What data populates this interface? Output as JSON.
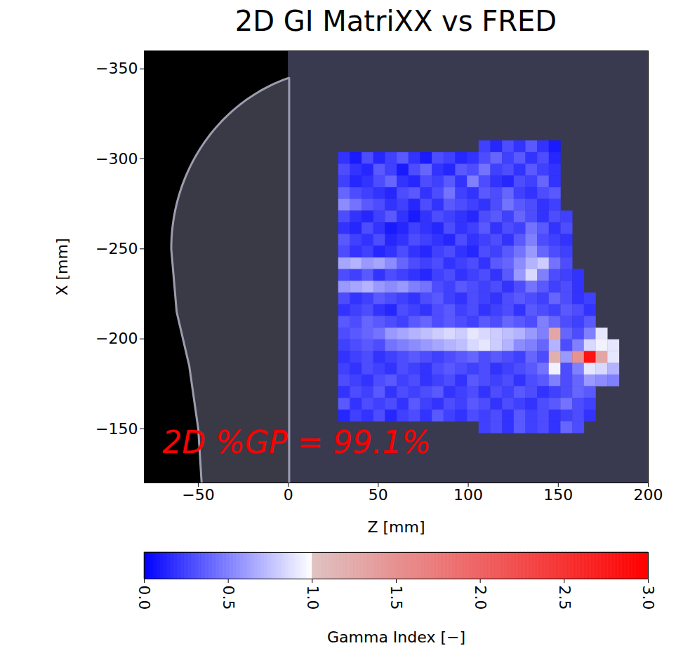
{
  "chart_data": {
    "type": "heatmap",
    "title": "2D GI MatriXX vs FRED",
    "x_label": "Z [mm]",
    "y_label": "X [mm]",
    "xlim": [
      -80,
      200
    ],
    "xticks": [
      -50,
      0,
      50,
      100,
      150,
      200
    ],
    "ylim": [
      -360,
      -120
    ],
    "yticks": [
      -350,
      -300,
      -250,
      -200,
      -150
    ],
    "ct_image": {
      "z_range": [
        -80,
        0
      ]
    },
    "z_edges": [
      28,
      34.5,
      41,
      47.5,
      54,
      60.5,
      67,
      73.5,
      80,
      86.5,
      93,
      99.5,
      106,
      112.5,
      119,
      125.5,
      132,
      138.5,
      145,
      151.5,
      158,
      164.5,
      171,
      177.5,
      184
    ],
    "x_edges": [
      -310,
      -303.5,
      -297,
      -290.5,
      -284,
      -277.5,
      -271,
      -264.5,
      -258,
      -251.5,
      -245,
      -238.5,
      -232,
      -225.5,
      -219,
      -212.5,
      -206,
      -199.5,
      -193,
      -186.5,
      -180,
      -173.5,
      -167,
      -160.5,
      -154,
      -147.5
    ],
    "cells": [
      [
        null,
        null,
        null,
        null,
        null,
        null,
        null,
        null,
        null,
        null,
        null,
        null,
        0.25,
        0.15,
        0.3,
        0.2,
        0.35,
        0.2,
        0.1,
        null,
        null,
        null,
        null,
        null
      ],
      [
        0.2,
        0.1,
        0.3,
        0.15,
        0.25,
        0.35,
        0.2,
        0.1,
        0.3,
        0.25,
        0.15,
        0.2,
        0.3,
        0.4,
        0.25,
        0.35,
        0.2,
        0.3,
        0.15,
        null,
        null,
        null,
        null,
        null
      ],
      [
        0.3,
        0.2,
        0.15,
        0.35,
        0.25,
        0.1,
        0.3,
        0.4,
        0.2,
        0.15,
        0.35,
        0.3,
        0.45,
        0.25,
        0.3,
        0.2,
        0.35,
        0.25,
        0.2,
        null,
        null,
        null,
        null,
        null
      ],
      [
        0.25,
        0.15,
        0.2,
        0.3,
        0.4,
        0.2,
        0.15,
        0.3,
        0.25,
        0.35,
        0.2,
        0.5,
        0.3,
        0.2,
        0.15,
        0.3,
        0.25,
        0.4,
        0.2,
        null,
        null,
        null,
        null,
        null
      ],
      [
        0.4,
        0.3,
        0.25,
        0.2,
        0.15,
        0.3,
        0.35,
        0.2,
        0.3,
        0.45,
        0.25,
        0.2,
        0.35,
        0.3,
        0.4,
        0.25,
        0.2,
        0.3,
        0.35,
        null,
        null,
        null,
        null,
        null
      ],
      [
        0.55,
        0.45,
        0.35,
        0.3,
        0.2,
        0.25,
        0.15,
        0.3,
        0.2,
        0.35,
        0.3,
        0.25,
        0.2,
        0.3,
        0.45,
        0.35,
        0.3,
        0.2,
        0.25,
        null,
        null,
        null,
        null,
        null
      ],
      [
        0.3,
        0.2,
        0.15,
        0.25,
        0.35,
        0.2,
        0.1,
        0.2,
        0.3,
        0.25,
        0.2,
        0.15,
        0.3,
        0.35,
        0.25,
        0.4,
        0.3,
        0.2,
        0.3,
        0.25,
        null,
        null,
        null,
        null
      ],
      [
        0.2,
        0.15,
        0.3,
        0.2,
        0.1,
        0.15,
        0.25,
        0.2,
        0.15,
        0.3,
        0.2,
        0.25,
        0.35,
        0.2,
        0.3,
        0.25,
        0.45,
        0.35,
        0.2,
        0.3,
        null,
        null,
        null,
        null
      ],
      [
        0.35,
        0.25,
        0.2,
        0.3,
        0.15,
        0.2,
        0.3,
        0.25,
        0.2,
        0.15,
        0.3,
        0.2,
        0.25,
        0.3,
        0.2,
        0.35,
        0.5,
        0.3,
        0.25,
        0.2,
        null,
        null,
        null,
        null
      ],
      [
        0.3,
        0.2,
        0.25,
        0.15,
        0.2,
        0.3,
        0.2,
        0.15,
        0.25,
        0.3,
        0.2,
        0.15,
        0.3,
        0.25,
        0.35,
        0.45,
        0.6,
        0.4,
        0.3,
        0.25,
        null,
        null,
        null,
        null
      ],
      [
        0.65,
        0.7,
        0.6,
        0.65,
        0.55,
        0.4,
        0.3,
        0.25,
        0.3,
        0.2,
        0.25,
        0.3,
        0.2,
        0.35,
        0.4,
        0.55,
        0.7,
        0.8,
        0.45,
        0.3,
        null,
        null,
        null,
        null
      ],
      [
        0.3,
        0.25,
        0.35,
        0.2,
        0.3,
        0.25,
        0.2,
        0.15,
        0.25,
        0.3,
        0.2,
        0.25,
        0.3,
        0.2,
        0.35,
        0.6,
        0.85,
        0.5,
        0.3,
        0.25,
        0.2,
        null,
        null,
        null
      ],
      [
        0.6,
        0.65,
        0.7,
        0.6,
        0.55,
        0.6,
        0.5,
        0.45,
        0.3,
        0.25,
        0.35,
        0.3,
        0.25,
        0.3,
        0.2,
        0.3,
        0.45,
        0.35,
        0.25,
        0.3,
        0.2,
        null,
        null,
        null
      ],
      [
        0.3,
        0.2,
        0.25,
        0.35,
        0.3,
        0.25,
        0.2,
        0.3,
        0.35,
        0.25,
        0.2,
        0.3,
        0.25,
        0.2,
        0.3,
        0.35,
        0.3,
        0.25,
        0.4,
        0.3,
        0.2,
        0.25,
        null,
        null
      ],
      [
        0.2,
        0.25,
        0.3,
        0.2,
        0.15,
        0.3,
        0.25,
        0.2,
        0.3,
        0.35,
        0.25,
        0.3,
        0.2,
        0.25,
        0.3,
        0.2,
        0.35,
        0.3,
        0.25,
        0.35,
        0.3,
        0.2,
        null,
        null
      ],
      [
        0.35,
        0.3,
        0.4,
        0.35,
        0.3,
        0.25,
        0.35,
        0.4,
        0.3,
        0.35,
        0.3,
        0.25,
        0.35,
        0.3,
        0.4,
        0.35,
        0.3,
        0.5,
        0.4,
        0.3,
        0.25,
        0.35,
        null,
        null
      ],
      [
        0.3,
        0.35,
        0.4,
        0.45,
        0.6,
        0.65,
        0.7,
        0.75,
        0.8,
        0.85,
        0.8,
        0.9,
        0.85,
        0.8,
        0.75,
        0.7,
        0.6,
        0.5,
        1.3,
        0.4,
        0.3,
        0.5,
        0.9,
        null
      ],
      [
        0.25,
        0.3,
        0.35,
        0.3,
        0.45,
        0.5,
        0.55,
        0.6,
        0.65,
        0.7,
        0.75,
        0.85,
        0.9,
        0.8,
        0.7,
        0.55,
        0.5,
        0.4,
        0.7,
        0.3,
        0.5,
        0.85,
        0.95,
        0.9
      ],
      [
        0.2,
        0.25,
        0.3,
        0.2,
        0.25,
        0.3,
        0.35,
        0.3,
        0.25,
        0.3,
        0.35,
        0.4,
        0.3,
        0.35,
        0.3,
        0.25,
        0.4,
        0.3,
        1.2,
        0.6,
        1.5,
        2.8,
        1.3,
        0.9
      ],
      [
        0.25,
        0.2,
        0.3,
        0.25,
        0.2,
        0.3,
        0.25,
        0.2,
        0.3,
        0.35,
        0.3,
        0.25,
        0.3,
        0.2,
        0.25,
        0.3,
        0.35,
        0.45,
        0.95,
        0.3,
        0.5,
        0.9,
        0.85,
        0.7
      ],
      [
        0.3,
        0.25,
        0.2,
        0.3,
        0.35,
        0.25,
        0.3,
        0.2,
        0.25,
        0.3,
        0.2,
        0.35,
        0.3,
        0.25,
        0.3,
        0.2,
        0.3,
        0.35,
        0.5,
        0.3,
        0.4,
        0.6,
        0.55,
        0.5
      ],
      [
        0.2,
        0.3,
        0.25,
        0.35,
        0.2,
        0.3,
        0.25,
        0.3,
        0.35,
        0.2,
        0.25,
        0.3,
        0.2,
        0.3,
        0.25,
        0.35,
        0.3,
        0.2,
        0.25,
        0.3,
        0.4,
        0.35,
        null,
        null
      ],
      [
        0.35,
        0.2,
        0.3,
        0.25,
        0.3,
        0.2,
        0.35,
        0.25,
        0.2,
        0.3,
        0.25,
        0.35,
        0.3,
        0.2,
        0.3,
        0.25,
        0.2,
        0.3,
        0.35,
        0.45,
        0.3,
        0.25,
        null,
        null
      ],
      [
        0.15,
        0.25,
        0.2,
        0.3,
        0.15,
        0.25,
        0.3,
        0.2,
        0.35,
        0.25,
        0.2,
        0.3,
        0.25,
        0.3,
        0.2,
        0.35,
        0.25,
        0.3,
        0.2,
        0.25,
        0.3,
        0.2,
        null,
        null
      ],
      [
        null,
        null,
        null,
        null,
        null,
        null,
        null,
        null,
        null,
        null,
        null,
        null,
        0.25,
        0.3,
        0.2,
        0.35,
        0.25,
        0.3,
        0.2,
        0.4,
        0.3,
        null,
        null,
        null
      ]
    ],
    "colorbar": {
      "label": "Gamma Index [−]",
      "range": [
        0,
        3
      ],
      "ticks": [
        {
          "value": 0,
          "label": "0.0"
        },
        {
          "value": 0.5,
          "label": "0.5"
        },
        {
          "value": 1,
          "label": "1.0"
        },
        {
          "value": 1.5,
          "label": "1.5"
        },
        {
          "value": 2,
          "label": "2.0"
        },
        {
          "value": 2.5,
          "label": "2.5"
        },
        {
          "value": 3,
          "label": "3.0"
        }
      ],
      "stops": [
        0,
        1,
        1,
        3
      ],
      "colors": [
        "#0000ff",
        "#ffffff",
        "#dfc2c2",
        "#ff0000"
      ]
    },
    "annotations": [
      {
        "text": "2D %GP = 99.1%",
        "z": -70,
        "x": -142,
        "color": "#ff0000"
      }
    ]
  }
}
